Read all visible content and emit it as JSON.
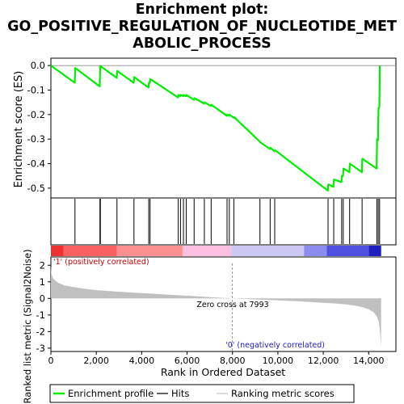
{
  "title_lines": [
    "Enrichment plot:",
    "GO_POSITIVE_REGULATION_OF_NUCLEOTIDE_MET",
    "ABOLIC_PROCESS"
  ],
  "chart_data": [
    {
      "type": "line",
      "panel": "enrichment",
      "ylabel": "Enrichment score (ES)",
      "ylim": [
        -0.54,
        0.03
      ],
      "xlim": [
        0,
        15200
      ],
      "yticks": [
        0.0,
        -0.1,
        -0.2,
        -0.3,
        -0.4,
        -0.5
      ],
      "ytick_labels": [
        "0.0",
        "-0.1",
        "-0.2",
        "-0.3",
        "-0.4",
        "-0.5"
      ],
      "zero_line": true,
      "series": [
        {
          "name": "Enrichment profile",
          "color": "#00ee00",
          "x": [
            0,
            1050,
            1070,
            2150,
            2170,
            2900,
            2920,
            3650,
            3670,
            4300,
            4320,
            4360,
            4380,
            5600,
            5620,
            5700,
            5720,
            5830,
            5850,
            5950,
            5970,
            6300,
            6320,
            6750,
            6770,
            7050,
            7070,
            7750,
            7770,
            7850,
            7870,
            8050,
            8070,
            9200,
            9220,
            9650,
            9670,
            9850,
            9870,
            12200,
            12220,
            12450,
            12470,
            12800,
            12820,
            12870,
            12890,
            13150,
            13170,
            13700,
            13720,
            14350,
            14370,
            14410,
            14430,
            14470,
            14490
          ],
          "y": [
            0.0,
            -0.07,
            -0.01,
            -0.085,
            -0.002,
            -0.05,
            -0.022,
            -0.07,
            -0.047,
            -0.09,
            -0.07,
            -0.07,
            -0.055,
            -0.13,
            -0.12,
            -0.125,
            -0.12,
            -0.125,
            -0.12,
            -0.125,
            -0.12,
            -0.14,
            -0.133,
            -0.155,
            -0.15,
            -0.165,
            -0.16,
            -0.205,
            -0.2,
            -0.205,
            -0.2,
            -0.213,
            -0.21,
            -0.31,
            -0.313,
            -0.34,
            -0.335,
            -0.35,
            -0.345,
            -0.51,
            -0.485,
            -0.495,
            -0.465,
            -0.475,
            -0.45,
            -0.45,
            -0.42,
            -0.435,
            -0.4,
            -0.435,
            -0.38,
            -0.42,
            -0.3,
            -0.305,
            -0.175,
            -0.17,
            0.0
          ]
        }
      ]
    },
    {
      "type": "scatter",
      "panel": "hits",
      "series": [
        {
          "name": "Hits",
          "color": "#000000",
          "x": [
            1060,
            2160,
            2180,
            2910,
            3660,
            4310,
            4370,
            5610,
            5710,
            5840,
            5960,
            6310,
            6760,
            7060,
            7760,
            7860,
            8060,
            9210,
            9660,
            9860,
            12210,
            12460,
            12810,
            12880,
            13160,
            13710,
            14360,
            14420,
            14480
          ]
        }
      ]
    },
    {
      "type": "heatmap",
      "panel": "rank-color-bar",
      "xlim": [
        0,
        15200
      ],
      "label_left": "'1' (positively correlated)",
      "label_right": "'0' (negatively correlated)",
      "segments": [
        {
          "from": 0,
          "to": 550,
          "color": "#ee3030"
        },
        {
          "from": 550,
          "to": 2900,
          "color": "#fa6060"
        },
        {
          "from": 2900,
          "to": 5800,
          "color": "#fc9090"
        },
        {
          "from": 5800,
          "to": 7950,
          "color": "#fbc0e0"
        },
        {
          "from": 7950,
          "to": 11150,
          "color": "#cccaf4"
        },
        {
          "from": 11150,
          "to": 12150,
          "color": "#8c8cee"
        },
        {
          "from": 12150,
          "to": 14000,
          "color": "#5050e0"
        },
        {
          "from": 14000,
          "to": 14550,
          "color": "#2020c0"
        }
      ]
    },
    {
      "type": "area",
      "panel": "ranked-metric",
      "xlabel": "Rank in Ordered Dataset",
      "ylabel": "Ranked list metric (Signal2Noise)",
      "xlim": [
        0,
        15200
      ],
      "ylim": [
        -3.2,
        2.5
      ],
      "xticks": [
        0,
        2000,
        4000,
        6000,
        8000,
        10000,
        12000,
        14000
      ],
      "xtick_labels": [
        "0",
        "2,000",
        "4,000",
        "6,000",
        "8,000",
        "10,000",
        "12,000",
        "14,000"
      ],
      "yticks": [
        2,
        1,
        0,
        -1,
        -2,
        -3
      ],
      "ytick_labels": [
        "2",
        "1",
        "0",
        "-1",
        "-2",
        "-3"
      ],
      "annotation": "Zero cross at 7993",
      "zero_cross": 7993,
      "series": [
        {
          "name": "Ranking metric scores",
          "color": "#c0c0c0",
          "x": [
            0,
            20,
            100,
            300,
            600,
            1000,
            1500,
            2000,
            3000,
            4000,
            5000,
            6000,
            7000,
            7993,
            9000,
            10000,
            11000,
            12000,
            12500,
            13000,
            13500,
            13800,
            14000,
            14200,
            14350,
            14450,
            14500,
            14550
          ],
          "y": [
            2.0,
            1.5,
            1.2,
            0.95,
            0.78,
            0.68,
            0.58,
            0.5,
            0.4,
            0.32,
            0.24,
            0.16,
            0.08,
            0.0,
            -0.06,
            -0.12,
            -0.18,
            -0.26,
            -0.3,
            -0.36,
            -0.46,
            -0.56,
            -0.66,
            -0.82,
            -1.05,
            -1.4,
            -2.0,
            -2.9
          ]
        }
      ]
    }
  ],
  "legend": [
    {
      "label": "Enrichment profile",
      "color": "#00ee00",
      "kind": "thick-line"
    },
    {
      "label": "Hits",
      "color": "#000000",
      "kind": "line"
    },
    {
      "label": "Ranking metric scores",
      "color": "#c0c0c0",
      "kind": "line"
    }
  ]
}
